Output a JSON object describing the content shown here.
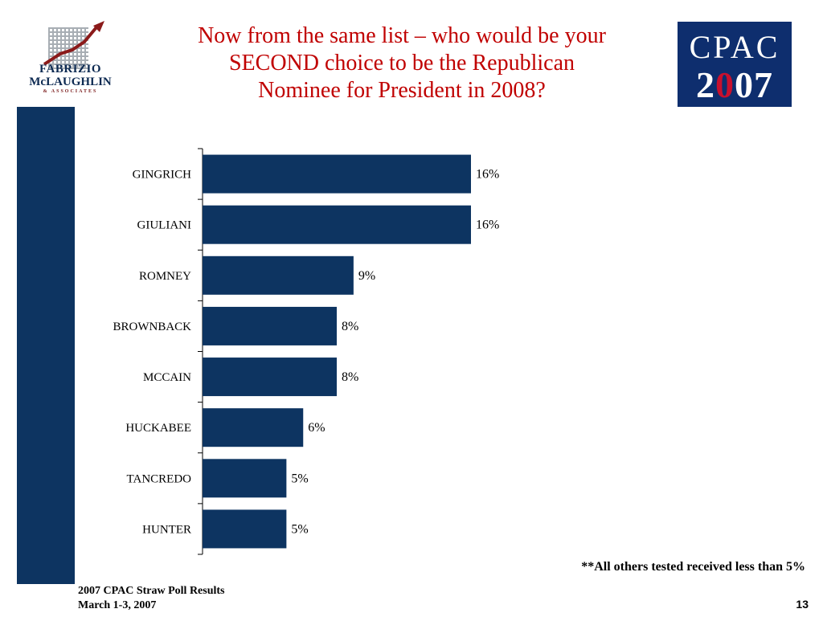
{
  "header": {
    "title_lines": [
      "Now from the same list – who would be your",
      "SECOND choice to be the Republican",
      "Nominee for President in 2008?"
    ]
  },
  "logo_left": {
    "line1": "FABRIZIO",
    "line2": "McLAUGHLIN",
    "line3": "& ASSOCIATES",
    "icon": "grid-arrow-logo"
  },
  "logo_right": {
    "line1": "CPAC",
    "year_prefix": "2",
    "year_flag_digit": "0",
    "year_suffix": "07",
    "colors": {
      "background": "#0e2e6e",
      "flag_red": "#c8102e"
    }
  },
  "chart_data": {
    "type": "bar",
    "orientation": "horizontal",
    "categories": [
      "GINGRICH",
      "GIULIANI",
      "ROMNEY",
      "BROWNBACK",
      "MCCAIN",
      "HUCKABEE",
      "TANCREDO",
      "HUNTER"
    ],
    "values": [
      16,
      16,
      9,
      8,
      8,
      6,
      5,
      5
    ],
    "value_labels": [
      "16%",
      "16%",
      "9%",
      "8%",
      "8%",
      "6%",
      "5%",
      "5%"
    ],
    "title": "",
    "xlabel": "",
    "ylabel": "",
    "xlim": [
      0,
      16
    ],
    "grid": false,
    "bar_color": "#0d3461"
  },
  "note": "**All others tested received less than 5%",
  "footer": {
    "line1": "2007 CPAC Straw Poll Results",
    "line2": "March 1-3, 2007"
  },
  "page_number": "13",
  "colors": {
    "title": "#c00000",
    "accent_bar": "#0d3461"
  }
}
